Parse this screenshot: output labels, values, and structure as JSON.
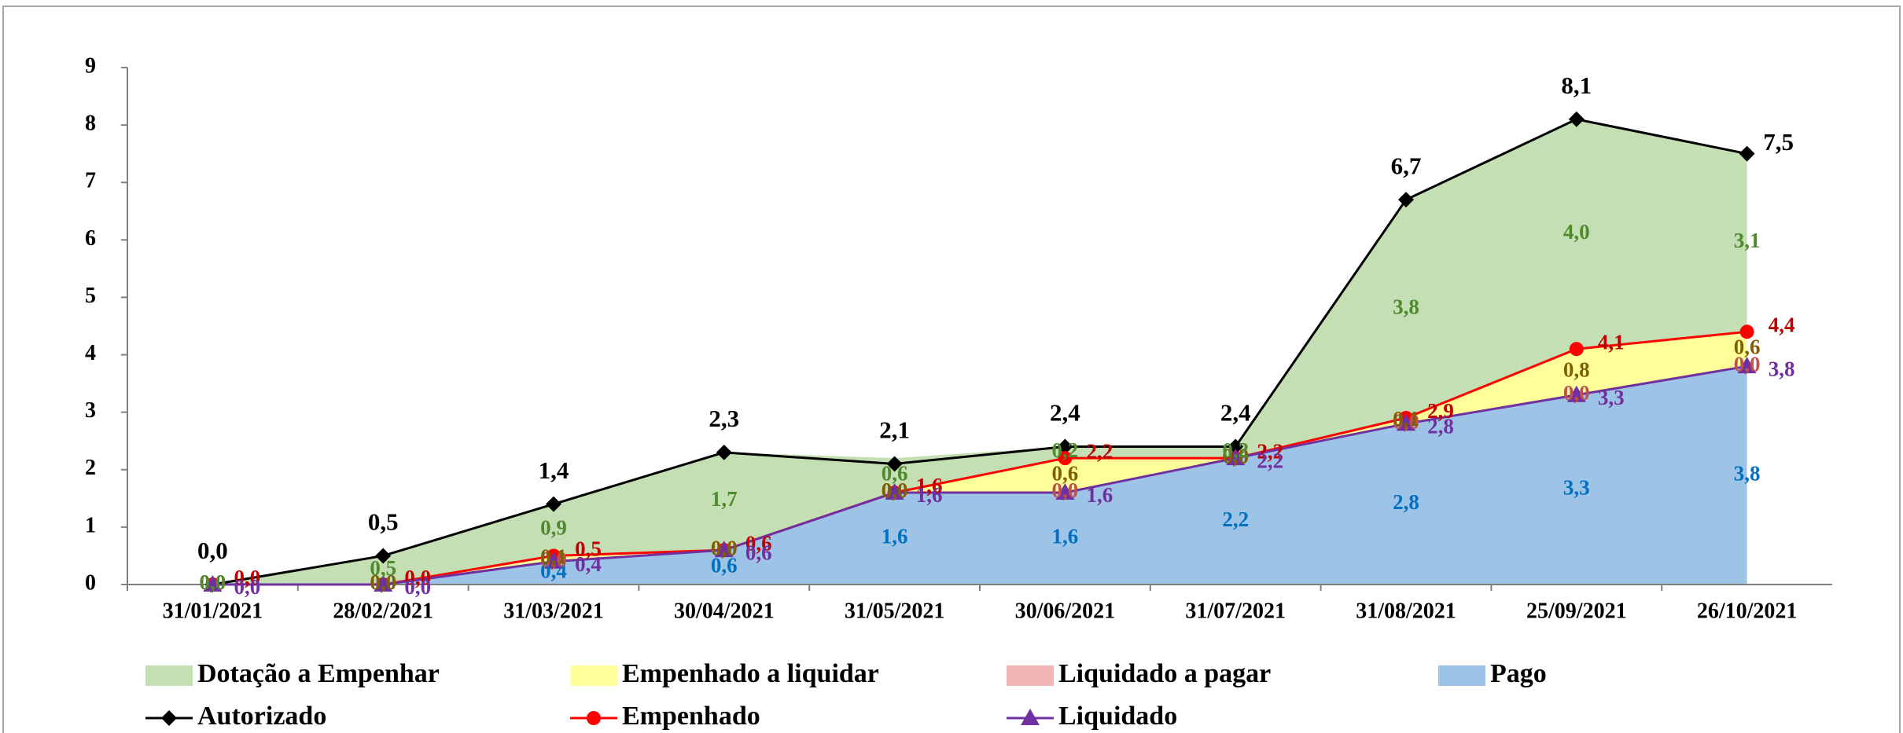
{
  "chart_data": {
    "type": "stacked_area_line",
    "categories": [
      "31/01/2021",
      "28/02/2021",
      "31/03/2021",
      "30/04/2021",
      "31/05/2021",
      "30/06/2021",
      "31/07/2021",
      "31/08/2021",
      "25/09/2021",
      "26/10/2021"
    ],
    "ylim": [
      0,
      9
    ],
    "yticks": [
      0,
      1,
      2,
      3,
      4,
      5,
      6,
      7,
      8,
      9
    ],
    "grid": false,
    "legend": "bottom",
    "series": [
      {
        "name": "Pago",
        "kind": "area",
        "color": "#9dc3e6",
        "label_color": "#0070c0",
        "values": [
          0.0,
          0.0,
          0.4,
          0.6,
          1.6,
          1.6,
          2.2,
          2.8,
          3.3,
          3.8
        ],
        "value_labels": [
          "0,0",
          "0,0",
          "0,4",
          "0,6",
          "1,6",
          "1,6",
          "2,2",
          "2,8",
          "3,3",
          "3,8"
        ]
      },
      {
        "name": "Liquidado a pagar",
        "kind": "area",
        "color": "#f4b6b4",
        "label_color": "#c0504d",
        "values": [
          0.0,
          0.0,
          0.0,
          0.0,
          0.0,
          0.0,
          0.0,
          0.0,
          0.0,
          0.0
        ],
        "value_labels": [
          "0,0",
          "0,0",
          "0,0",
          "0,0",
          "0,0",
          "0,0",
          "0,0",
          "0,0",
          "0,0",
          "0,0"
        ]
      },
      {
        "name": "Empenhado a liquidar",
        "kind": "area",
        "color": "#ffff99",
        "label_color": "#7f6000",
        "values": [
          0.0,
          0.0,
          0.1,
          0.0,
          0.0,
          0.6,
          0.0,
          0.1,
          0.8,
          0.6
        ],
        "value_labels": [
          "0,0",
          "0,0",
          "0,1",
          "0,0",
          "0,0",
          "0,6",
          "0,0",
          "0,1",
          "0,8",
          "0,6"
        ]
      },
      {
        "name": "Dotação a Empenhar",
        "kind": "area",
        "color": "#c4dfb4",
        "label_color": "#4f8a2f",
        "values": [
          0.0,
          0.5,
          0.9,
          1.7,
          0.6,
          0.2,
          0.2,
          3.8,
          4.0,
          3.1
        ],
        "value_labels": [
          "0,0",
          "0,5",
          "0,9",
          "1,7",
          "0,6",
          "0,2",
          "0,2",
          "3,8",
          "4,0",
          "3,1"
        ]
      },
      {
        "name": "Autorizado",
        "kind": "line",
        "marker": "diamond",
        "color": "#000000",
        "label_color": "#000000",
        "values": [
          0.0,
          0.5,
          1.4,
          2.3,
          2.1,
          2.4,
          2.4,
          6.7,
          8.1,
          7.5
        ],
        "value_labels": [
          "0,0",
          "0,5",
          "1,4",
          "2,3",
          "2,1",
          "2,4",
          "2,4",
          "6,7",
          "8,1",
          "7,5"
        ]
      },
      {
        "name": "Empenhado",
        "kind": "line",
        "marker": "circle",
        "color": "#ff0000",
        "label_color": "#c00000",
        "values": [
          0.0,
          0.0,
          0.5,
          0.6,
          1.6,
          2.2,
          2.2,
          2.9,
          4.1,
          4.4
        ],
        "value_labels": [
          "0,0",
          "0,0",
          "0,5",
          "0,6",
          "1,6",
          "2,2",
          "2,2",
          "2,9",
          "4,1",
          "4,4"
        ]
      },
      {
        "name": "Liquidado",
        "kind": "line",
        "marker": "triangle",
        "color": "#7030a0",
        "label_color": "#7030a0",
        "values": [
          0.0,
          0.0,
          0.4,
          0.6,
          1.6,
          1.6,
          2.2,
          2.8,
          3.3,
          3.8
        ],
        "value_labels": [
          "0,0",
          "0,0",
          "0,4",
          "0,6",
          "1,6",
          "1,6",
          "2,2",
          "2,8",
          "3,3",
          "3,8"
        ]
      }
    ]
  }
}
